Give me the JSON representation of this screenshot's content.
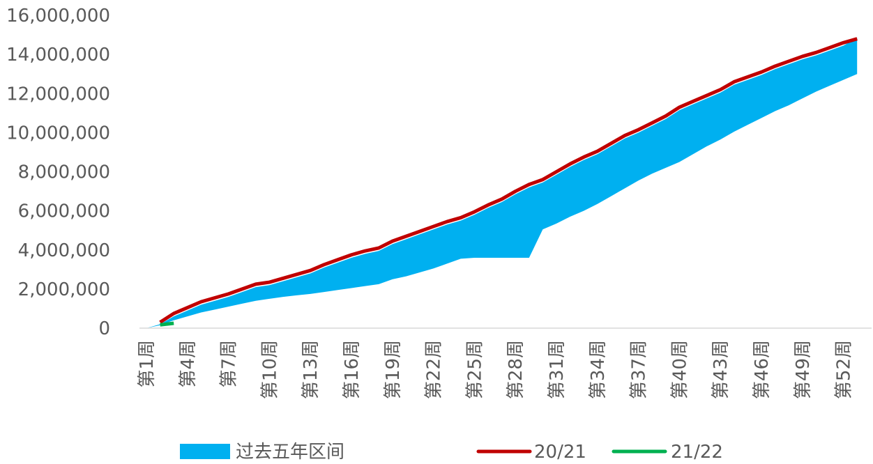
{
  "chart_data": {
    "type": "area-range-line",
    "categories": [
      "第1周",
      null,
      null,
      "第4周",
      null,
      null,
      "第7周",
      null,
      null,
      "第10周",
      null,
      null,
      "第13周",
      null,
      null,
      "第16周",
      null,
      null,
      "第19周",
      null,
      null,
      "第22周",
      null,
      null,
      "第25周",
      null,
      null,
      "第28周",
      null,
      null,
      "第31周",
      null,
      null,
      "第34周",
      null,
      null,
      "第37周",
      null,
      null,
      "第40周",
      null,
      null,
      "第43周",
      null,
      null,
      "第46周",
      null,
      null,
      "第49周",
      null,
      null,
      "第52周",
      null
    ],
    "band": {
      "name": "过去五年区间",
      "color": "#00b0f0",
      "high": [
        0,
        200000,
        600000,
        900000,
        1200000,
        1400000,
        1600000,
        1850000,
        2100000,
        2200000,
        2400000,
        2600000,
        2800000,
        3100000,
        3350000,
        3600000,
        3800000,
        3950000,
        4300000,
        4550000,
        4800000,
        5050000,
        5300000,
        5500000,
        5800000,
        6150000,
        6450000,
        6850000,
        7200000,
        7450000,
        7850000,
        8250000,
        8600000,
        8900000,
        9300000,
        9700000,
        10000000,
        10350000,
        10700000,
        11150000,
        11450000,
        11750000,
        12050000,
        12450000,
        12700000,
        12950000,
        13250000,
        13500000,
        13750000,
        13950000,
        14200000,
        14450000,
        14850000
      ],
      "low": [
        0,
        150000,
        400000,
        600000,
        800000,
        950000,
        1100000,
        1250000,
        1400000,
        1500000,
        1600000,
        1680000,
        1750000,
        1850000,
        1950000,
        2050000,
        2150000,
        2250000,
        2500000,
        2650000,
        2850000,
        3050000,
        3300000,
        3550000,
        3600000,
        3600000,
        3600000,
        3600000,
        3600000,
        5050000,
        5350000,
        5700000,
        6000000,
        6350000,
        6750000,
        7150000,
        7550000,
        7900000,
        8200000,
        8500000,
        8900000,
        9300000,
        9650000,
        10050000,
        10400000,
        10750000,
        11100000,
        11400000,
        11750000,
        12100000,
        12400000,
        12700000,
        13000000
      ]
    },
    "series": [
      {
        "name": "20/21",
        "color": "#c00000",
        "values": [
          null,
          300000,
          750000,
          1050000,
          1350000,
          1550000,
          1750000,
          2000000,
          2250000,
          2350000,
          2550000,
          2750000,
          2950000,
          3250000,
          3500000,
          3750000,
          3950000,
          4100000,
          4450000,
          4700000,
          4950000,
          5200000,
          5450000,
          5650000,
          5950000,
          6300000,
          6600000,
          7000000,
          7350000,
          7600000,
          8000000,
          8400000,
          8750000,
          9050000,
          9450000,
          9850000,
          10150000,
          10500000,
          10850000,
          11300000,
          11600000,
          11900000,
          12200000,
          12600000,
          12850000,
          13100000,
          13400000,
          13650000,
          13900000,
          14100000,
          14350000,
          14600000,
          14800000
        ]
      },
      {
        "name": "21/22",
        "color": "#00b050",
        "values": [
          null,
          170000,
          250000,
          null,
          null,
          null,
          null,
          null,
          null,
          null,
          null,
          null,
          null,
          null,
          null,
          null,
          null,
          null,
          null,
          null,
          null,
          null,
          null,
          null,
          null,
          null,
          null,
          null,
          null,
          null,
          null,
          null,
          null,
          null,
          null,
          null,
          null,
          null,
          null,
          null,
          null,
          null,
          null,
          null,
          null,
          null,
          null,
          null,
          null,
          null,
          null,
          null,
          null
        ]
      }
    ],
    "ylim": [
      0,
      16000000
    ],
    "yticks": [
      0,
      {
        "value": 2000000,
        "label": "2,000,000"
      },
      {
        "value": 4000000,
        "label": "4,000,000"
      },
      {
        "value": 6000000,
        "label": "6,000,000"
      },
      {
        "value": 8000000,
        "label": "8,000,000"
      },
      {
        "value": 10000000,
        "label": "10,000,000"
      },
      {
        "value": 12000000,
        "label": "12,000,000"
      },
      {
        "value": 14000000,
        "label": "14,000,000"
      },
      {
        "value": 16000000,
        "label": "16,000,000"
      }
    ],
    "legend": "bottom"
  }
}
